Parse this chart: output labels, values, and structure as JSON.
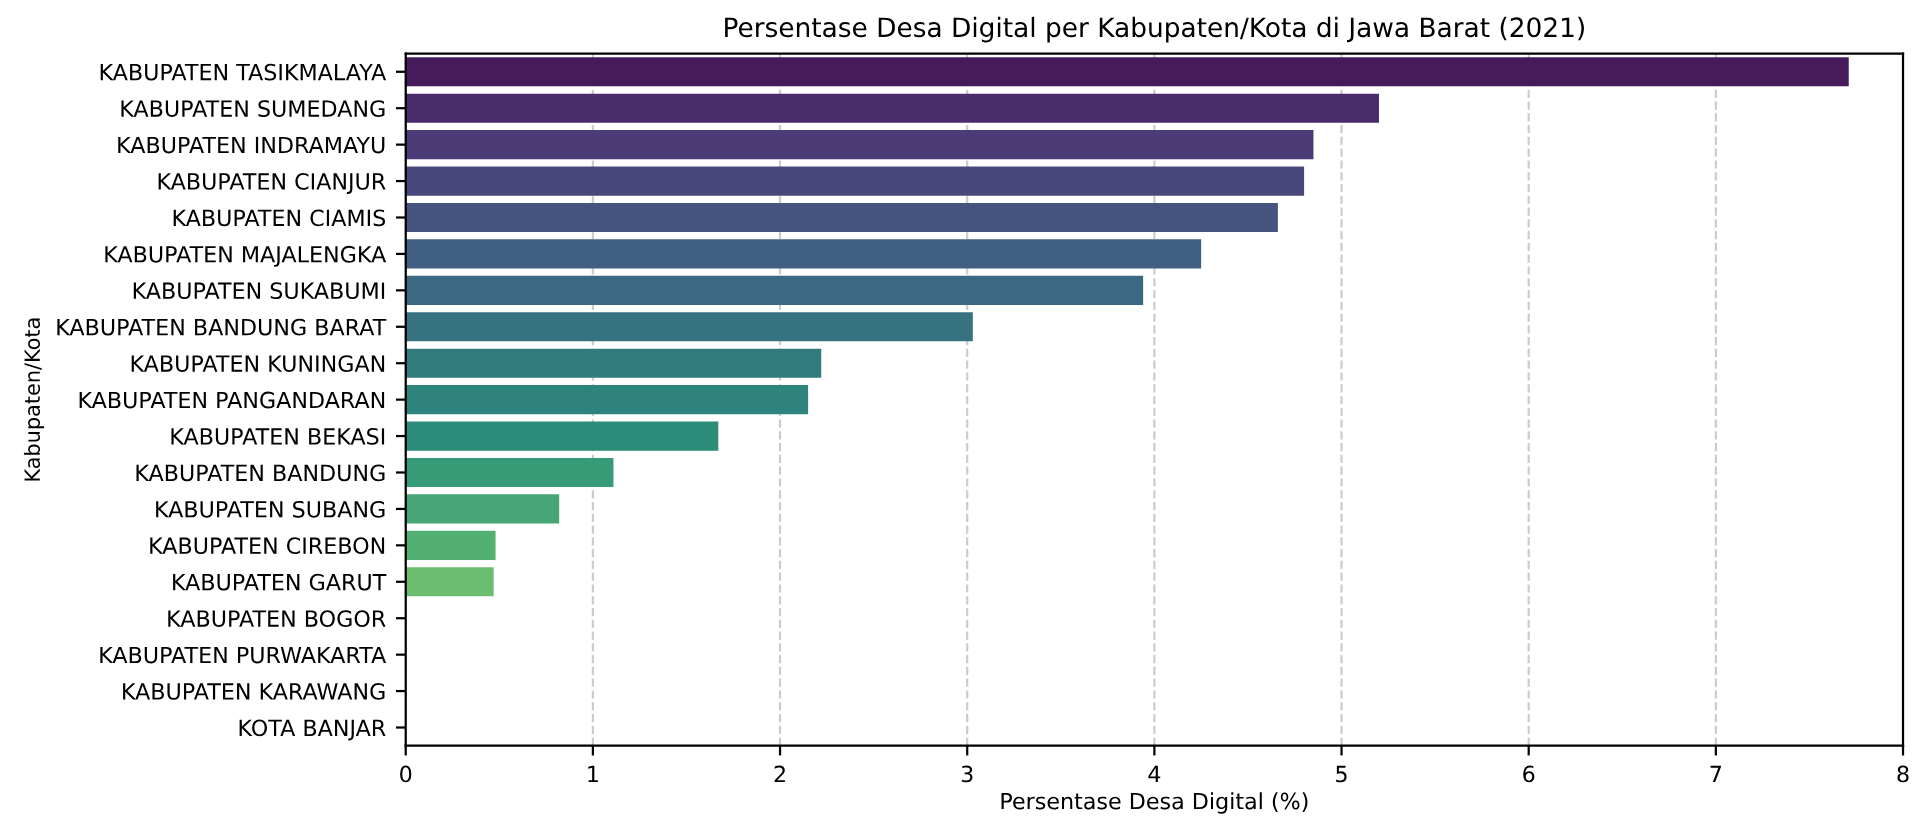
{
  "chart_data": {
    "type": "bar",
    "orientation": "horizontal",
    "title": "Persentase Desa Digital per Kabupaten/Kota di Jawa Barat (2021)",
    "xlabel": "Persentase Desa Digital (%)",
    "ylabel": "Kabupaten/Kota",
    "categories": [
      "KABUPATEN TASIKMALAYA",
      "KABUPATEN SUMEDANG",
      "KABUPATEN INDRAMAYU",
      "KABUPATEN CIANJUR",
      "KABUPATEN CIAMIS",
      "KABUPATEN MAJALENGKA",
      "KABUPATEN SUKABUMI",
      "KABUPATEN BANDUNG BARAT",
      "KABUPATEN KUNINGAN",
      "KABUPATEN PANGANDARAN",
      "KABUPATEN BEKASI",
      "KABUPATEN BANDUNG",
      "KABUPATEN SUBANG",
      "KABUPATEN CIREBON",
      "KABUPATEN GARUT",
      "KABUPATEN BOGOR",
      "KABUPATEN PURWAKARTA",
      "KABUPATEN KARAWANG",
      "KOTA BANJAR"
    ],
    "values": [
      7.71,
      5.2,
      4.85,
      4.8,
      4.66,
      4.25,
      3.94,
      3.03,
      2.22,
      2.15,
      1.67,
      1.11,
      0.82,
      0.48,
      0.47,
      0,
      0,
      0,
      0
    ],
    "colors": [
      "#461b5b",
      "#4a2b6c",
      "#4b3b76",
      "#48487c",
      "#44547f",
      "#405f82",
      "#3c6882",
      "#367280",
      "#317b7f",
      "#2e847d",
      "#2c8c7a",
      "#389b77",
      "#45a574",
      "#52b073",
      "#6cbd6f",
      "#86c86a",
      "#a0d265",
      "#bcdb60",
      "#d8e25c"
    ],
    "xlim": [
      0,
      8
    ],
    "xticks": [
      0,
      1,
      2,
      3,
      4,
      5,
      6,
      7,
      8
    ],
    "grid": "x"
  }
}
